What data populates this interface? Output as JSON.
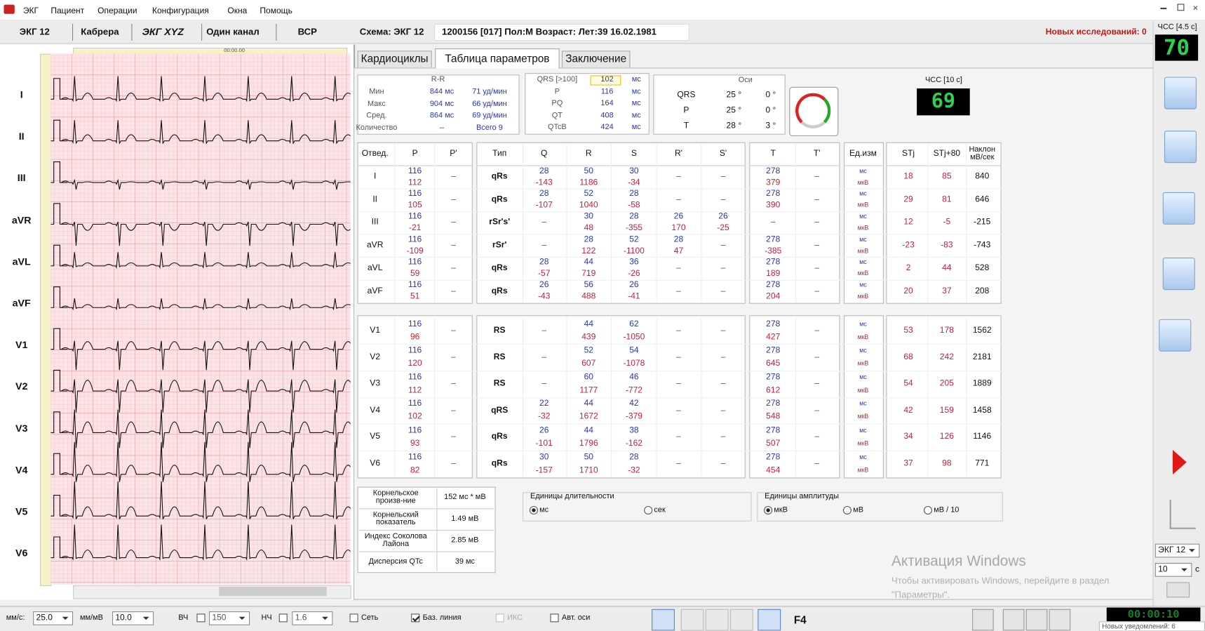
{
  "menu": [
    "ЭКГ",
    "Пациент",
    "Операции",
    "Конфигурация",
    "Окна",
    "Помощь"
  ],
  "mode_tabs": [
    "ЭКГ 12",
    "Кабрера",
    "ЭКГ XYZ",
    "Один канал",
    "ВСР"
  ],
  "scheme": "Схема: ЭКГ 12",
  "patient": "1200156  [017]  Пол:М  Возраст: Лет:39  16.02.1981",
  "new_studies": "Новых исследований: 0",
  "hr_live": {
    "label": "ЧСС [4.5 с]",
    "value": "70"
  },
  "ruler_time": "00:00.00",
  "leads": [
    "I",
    "II",
    "III",
    "aVR",
    "aVL",
    "aVF",
    "V1",
    "V2",
    "V3",
    "V4",
    "V5",
    "V6"
  ],
  "param_tabs": [
    "Кардиоциклы",
    "Таблица параметров",
    "Заключение"
  ],
  "rr": {
    "title": "R-R",
    "rows": [
      [
        "Мин",
        "844 мс",
        "71 уд/мин"
      ],
      [
        "Макс",
        "904 мс",
        "66 уд/мин"
      ],
      [
        "Сред.",
        "864 мс",
        "69 уд/мин"
      ],
      [
        "Количество",
        "–",
        "Всего 9"
      ]
    ]
  },
  "intervals": {
    "rows": [
      [
        "QRS [>100]",
        "102",
        "мс"
      ],
      [
        "P",
        "116",
        "мс"
      ],
      [
        "PQ",
        "164",
        "мс"
      ],
      [
        "QT",
        "408",
        "мс"
      ],
      [
        "QTcB",
        "424",
        "мс"
      ]
    ]
  },
  "axes": {
    "title": "Оси",
    "rows": [
      [
        "QRS",
        "25 °",
        "0 °"
      ],
      [
        "P",
        "25 °",
        "0 °"
      ],
      [
        "T",
        "28 °",
        "3 °"
      ]
    ]
  },
  "hr10": {
    "label": "ЧСС [10 с]",
    "value": "69"
  },
  "table": {
    "header": [
      "Отвед.",
      "P",
      "P'",
      "Тип",
      "Q",
      "R",
      "S",
      "R'",
      "S'",
      "T",
      "T'",
      "Ед.изм",
      "STj",
      "STj+80",
      "Наклон мВ/сек"
    ],
    "limb": [
      [
        "I",
        [
          "116",
          "112"
        ],
        "–",
        "qRs",
        [
          "28",
          "-143"
        ],
        [
          "50",
          "1186"
        ],
        [
          "30",
          "-34"
        ],
        "–",
        "–",
        [
          "278",
          "379"
        ],
        "–",
        [
          "мс",
          "мкВ"
        ],
        "18",
        "85",
        "840"
      ],
      [
        "II",
        [
          "116",
          "105"
        ],
        "–",
        "qRs",
        [
          "28",
          "-107"
        ],
        [
          "52",
          "1040"
        ],
        [
          "28",
          "-58"
        ],
        "–",
        "–",
        [
          "278",
          "390"
        ],
        "–",
        [
          "мс",
          "мкВ"
        ],
        "29",
        "81",
        "646"
      ],
      [
        "III",
        [
          "116",
          "-21"
        ],
        "–",
        "rSr's'",
        "–",
        [
          "30",
          "48"
        ],
        [
          "28",
          "-355"
        ],
        [
          "26",
          "170"
        ],
        [
          "26",
          "-25"
        ],
        "–",
        "–",
        [
          "мс",
          "мкВ"
        ],
        "12",
        "-5",
        "-215"
      ],
      [
        "aVR",
        [
          "116",
          "-109"
        ],
        "–",
        "rSr'",
        "–",
        [
          "28",
          "122"
        ],
        [
          "52",
          "-1100"
        ],
        [
          "28",
          "47"
        ],
        "–",
        [
          "278",
          "-385"
        ],
        "–",
        [
          "мс",
          "мкВ"
        ],
        "-23",
        "-83",
        "-743"
      ],
      [
        "aVL",
        [
          "116",
          "59"
        ],
        "–",
        "qRs",
        [
          "28",
          "-57"
        ],
        [
          "44",
          "719"
        ],
        [
          "36",
          "-26"
        ],
        "–",
        "–",
        [
          "278",
          "189"
        ],
        "–",
        [
          "мс",
          "мкВ"
        ],
        "2",
        "44",
        "528"
      ],
      [
        "aVF",
        [
          "116",
          "51"
        ],
        "–",
        "qRs",
        [
          "26",
          "-43"
        ],
        [
          "56",
          "488"
        ],
        [
          "26",
          "-41"
        ],
        "–",
        "–",
        [
          "278",
          "204"
        ],
        "–",
        [
          "мс",
          "мкВ"
        ],
        "20",
        "37",
        "208"
      ]
    ],
    "chest": [
      [
        "V1",
        [
          "116",
          "96"
        ],
        "–",
        "RS",
        "–",
        [
          "44",
          "439"
        ],
        [
          "62",
          "-1050"
        ],
        "–",
        "–",
        [
          "278",
          "427"
        ],
        "–",
        [
          "мс",
          "мкВ"
        ],
        "53",
        "178",
        "1562"
      ],
      [
        "V2",
        [
          "116",
          "120"
        ],
        "–",
        "RS",
        "–",
        [
          "52",
          "607"
        ],
        [
          "54",
          "-1078"
        ],
        "–",
        "–",
        [
          "278",
          "645"
        ],
        "–",
        [
          "мс",
          "мкВ"
        ],
        "68",
        "242",
        "2181"
      ],
      [
        "V3",
        [
          "116",
          "112"
        ],
        "–",
        "RS",
        "–",
        [
          "60",
          "1177"
        ],
        [
          "46",
          "-772"
        ],
        "–",
        "–",
        [
          "278",
          "612"
        ],
        "–",
        [
          "мс",
          "мкВ"
        ],
        "54",
        "205",
        "1889"
      ],
      [
        "V4",
        [
          "116",
          "102"
        ],
        "–",
        "qRS",
        [
          "22",
          "-32"
        ],
        [
          "44",
          "1672"
        ],
        [
          "42",
          "-379"
        ],
        "–",
        "–",
        [
          "278",
          "548"
        ],
        "–",
        [
          "мс",
          "мкВ"
        ],
        "42",
        "159",
        "1458"
      ],
      [
        "V5",
        [
          "116",
          "93"
        ],
        "–",
        "qRs",
        [
          "26",
          "-101"
        ],
        [
          "44",
          "1796"
        ],
        [
          "38",
          "-162"
        ],
        "–",
        "–",
        [
          "278",
          "507"
        ],
        "–",
        [
          "мс",
          "мкВ"
        ],
        "34",
        "126",
        "1146"
      ],
      [
        "V6",
        [
          "116",
          "82"
        ],
        "–",
        "qRs",
        [
          "30",
          "-157"
        ],
        [
          "50",
          "1710"
        ],
        [
          "28",
          "-32"
        ],
        "–",
        "–",
        [
          "278",
          "454"
        ],
        "–",
        [
          "мс",
          "мкВ"
        ],
        "37",
        "98",
        "771"
      ]
    ]
  },
  "indices": [
    [
      "Корнельское произв-ние",
      "152 мс * мВ"
    ],
    [
      "Корнельский показатель",
      "1.49 мВ"
    ],
    [
      "Индекс Соколова Лайона",
      "2.85 мВ"
    ],
    [
      "Дисперсия QTc",
      "39 мс"
    ]
  ],
  "duration_units": {
    "title": "Единицы длительности",
    "options": [
      "мс",
      "сек"
    ],
    "selected": 0
  },
  "amplitude_units": {
    "title": "Единицы амплитуды",
    "options": [
      "мкВ",
      "мВ",
      "мВ / 10"
    ],
    "selected": 0
  },
  "watermark": {
    "title": "Активация Windows",
    "text": "Чтобы активировать Windows, перейдите в раздел",
    "text2": "\"Параметры\"."
  },
  "side": {
    "scheme_select": "ЭКГ 12",
    "seconds_select": "10",
    "seconds_unit": "с"
  },
  "toolbar": {
    "speed_label": "мм/с:",
    "speed": "25.0",
    "gain_label": "мм/мВ",
    "gain": "10.0",
    "hf_label": "ВЧ",
    "hf": "150",
    "lf_label": "НЧ",
    "lf": "1.6",
    "checks": [
      {
        "label": "Сеть",
        "checked": false
      },
      {
        "label": "Баз. линия",
        "checked": true
      },
      {
        "label": "ИКС",
        "checked": false,
        "disabled": true
      },
      {
        "label": "Авт. оси",
        "checked": false
      }
    ],
    "hotkey": "F4",
    "clock": "00:00:10"
  },
  "notifications": "Новых уведомлений: 6"
}
